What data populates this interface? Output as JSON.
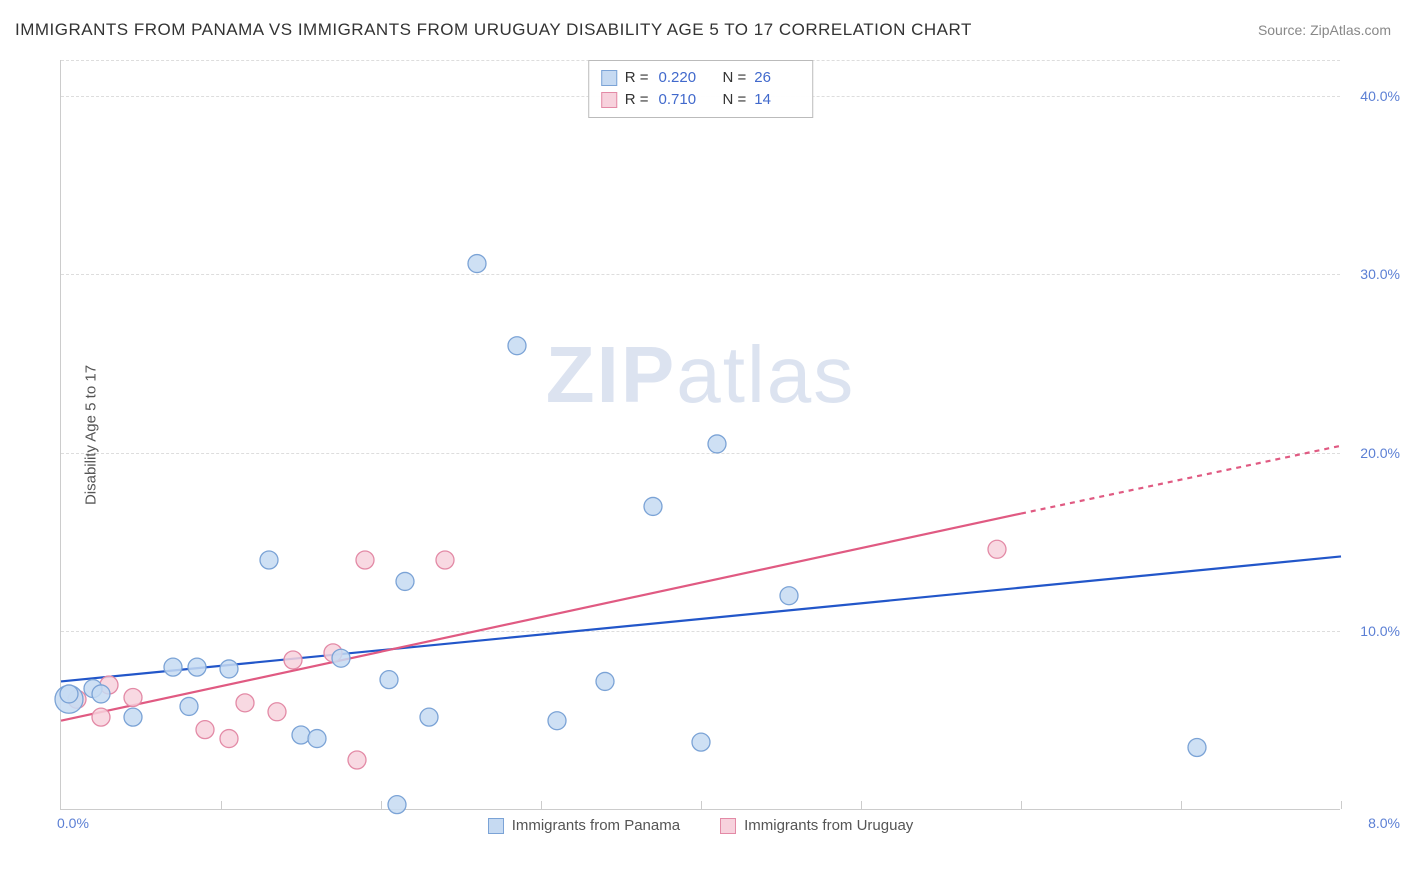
{
  "header": {
    "title": "IMMIGRANTS FROM PANAMA VS IMMIGRANTS FROM URUGUAY DISABILITY AGE 5 TO 17 CORRELATION CHART",
    "source_prefix": "Source: ",
    "source_link": "ZipAtlas.com"
  },
  "chart": {
    "type": "scatter",
    "ylabel": "Disability Age 5 to 17",
    "xlim": [
      0,
      8
    ],
    "ylim": [
      0,
      42
    ],
    "xticks": [
      0,
      1,
      2,
      3,
      4,
      5,
      6,
      7,
      8
    ],
    "xtick_labels": {
      "0": "0.0%",
      "8": "8.0%"
    },
    "yticks": [
      10,
      20,
      30,
      40
    ],
    "ytick_labels": [
      "10.0%",
      "20.0%",
      "30.0%",
      "40.0%"
    ],
    "background_color": "#ffffff",
    "grid_color": "#dddddd",
    "axis_color": "#cccccc",
    "tick_label_color": "#5b7fd4",
    "watermark_text_bold": "ZIP",
    "watermark_text_light": "atlas",
    "watermark_color": "#dce3f0",
    "stats_legend": [
      {
        "series": "panama",
        "R": "0.220",
        "N": "26"
      },
      {
        "series": "uruguay",
        "R": "0.710",
        "N": "14"
      }
    ],
    "series": {
      "panama": {
        "label": "Immigrants from Panama",
        "marker_fill": "#c6daf2",
        "marker_stroke": "#7ba3d6",
        "marker_radius": 9,
        "line_color": "#2256c9",
        "line_width": 2.2,
        "line": {
          "x1": 0,
          "y1": 7.2,
          "x2": 8,
          "y2": 14.2
        },
        "points": [
          {
            "x": 0.05,
            "y": 6.2,
            "r": 14
          },
          {
            "x": 0.05,
            "y": 6.5
          },
          {
            "x": 0.2,
            "y": 6.8
          },
          {
            "x": 0.25,
            "y": 6.5
          },
          {
            "x": 0.45,
            "y": 5.2
          },
          {
            "x": 0.7,
            "y": 8.0
          },
          {
            "x": 0.8,
            "y": 5.8
          },
          {
            "x": 0.85,
            "y": 8.0
          },
          {
            "x": 1.05,
            "y": 7.9
          },
          {
            "x": 1.3,
            "y": 14.0
          },
          {
            "x": 1.5,
            "y": 4.2
          },
          {
            "x": 1.6,
            "y": 4.0
          },
          {
            "x": 1.75,
            "y": 8.5
          },
          {
            "x": 2.05,
            "y": 7.3
          },
          {
            "x": 2.1,
            "y": 0.3
          },
          {
            "x": 2.15,
            "y": 12.8
          },
          {
            "x": 2.3,
            "y": 5.2
          },
          {
            "x": 2.6,
            "y": 30.6
          },
          {
            "x": 2.85,
            "y": 26.0
          },
          {
            "x": 3.1,
            "y": 5.0
          },
          {
            "x": 3.4,
            "y": 7.2
          },
          {
            "x": 3.7,
            "y": 17.0
          },
          {
            "x": 4.0,
            "y": 3.8
          },
          {
            "x": 4.1,
            "y": 20.5
          },
          {
            "x": 4.55,
            "y": 12.0
          },
          {
            "x": 7.1,
            "y": 3.5
          }
        ]
      },
      "uruguay": {
        "label": "Immigrants from Uruguay",
        "marker_fill": "#f7d2dd",
        "marker_stroke": "#e38aa6",
        "marker_radius": 9,
        "line_color": "#e05a82",
        "line_width": 2.2,
        "line_solid": {
          "x1": 0,
          "y1": 5.0,
          "x2": 6.0,
          "y2": 16.6
        },
        "line_dash": {
          "x1": 6.0,
          "y1": 16.6,
          "x2": 8.0,
          "y2": 20.4
        },
        "points": [
          {
            "x": 0.1,
            "y": 6.2
          },
          {
            "x": 0.25,
            "y": 5.2
          },
          {
            "x": 0.3,
            "y": 7.0
          },
          {
            "x": 0.45,
            "y": 6.3
          },
          {
            "x": 0.9,
            "y": 4.5
          },
          {
            "x": 1.05,
            "y": 4.0
          },
          {
            "x": 1.15,
            "y": 6.0
          },
          {
            "x": 1.35,
            "y": 5.5
          },
          {
            "x": 1.45,
            "y": 8.4
          },
          {
            "x": 1.7,
            "y": 8.8
          },
          {
            "x": 1.85,
            "y": 2.8
          },
          {
            "x": 1.9,
            "y": 14.0
          },
          {
            "x": 2.4,
            "y": 14.0
          },
          {
            "x": 5.85,
            "y": 14.6
          }
        ]
      }
    }
  }
}
